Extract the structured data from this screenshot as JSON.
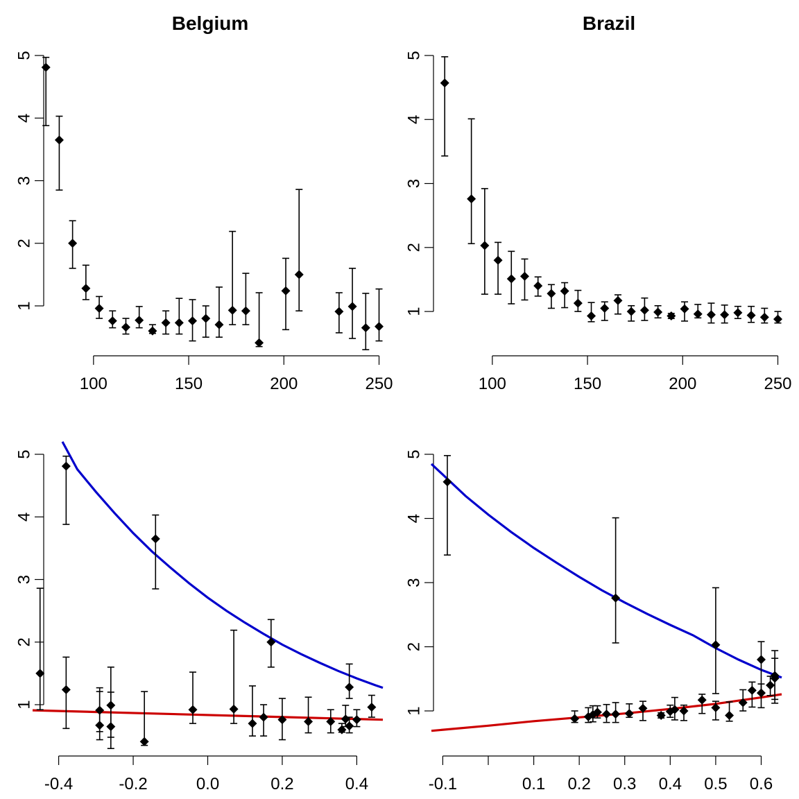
{
  "chart_data": [
    {
      "type": "scatter",
      "title": "Belgium",
      "xlabel": "",
      "ylabel": "",
      "xlim": [
        68,
        252
      ],
      "ylim": [
        0.28,
        5.0
      ],
      "xticks": [
        "100",
        "150",
        "200",
        "250"
      ],
      "yticks": [
        "1",
        "2",
        "3",
        "4",
        "5"
      ],
      "series": [
        {
          "points": [
            {
              "x": 75,
              "y": 4.81,
              "lo": 3.88,
              "hi": 4.97
            },
            {
              "x": 82,
              "y": 3.65,
              "lo": 2.85,
              "hi": 4.03
            },
            {
              "x": 89,
              "y": 2.0,
              "lo": 1.6,
              "hi": 2.36
            },
            {
              "x": 96,
              "y": 1.28,
              "lo": 1.1,
              "hi": 1.65
            },
            {
              "x": 103,
              "y": 0.96,
              "lo": 0.8,
              "hi": 1.15
            },
            {
              "x": 110,
              "y": 0.76,
              "lo": 0.65,
              "hi": 0.92
            },
            {
              "x": 117,
              "y": 0.66,
              "lo": 0.55,
              "hi": 0.8
            },
            {
              "x": 124,
              "y": 0.77,
              "lo": 0.65,
              "hi": 0.99
            },
            {
              "x": 131,
              "y": 0.6,
              "lo": 0.56,
              "hi": 0.7
            },
            {
              "x": 138,
              "y": 0.73,
              "lo": 0.55,
              "hi": 0.92
            },
            {
              "x": 145,
              "y": 0.73,
              "lo": 0.55,
              "hi": 1.12
            },
            {
              "x": 152,
              "y": 0.76,
              "lo": 0.44,
              "hi": 1.1
            },
            {
              "x": 159,
              "y": 0.8,
              "lo": 0.5,
              "hi": 1.0
            },
            {
              "x": 166,
              "y": 0.7,
              "lo": 0.5,
              "hi": 1.3
            },
            {
              "x": 173,
              "y": 0.93,
              "lo": 0.7,
              "hi": 2.19
            },
            {
              "x": 180,
              "y": 0.92,
              "lo": 0.7,
              "hi": 1.52
            },
            {
              "x": 187,
              "y": 0.41,
              "lo": 0.35,
              "hi": 1.21
            },
            {
              "x": 201,
              "y": 1.24,
              "lo": 0.62,
              "hi": 1.76
            },
            {
              "x": 208,
              "y": 1.5,
              "lo": 0.92,
              "hi": 2.86
            },
            {
              "x": 229,
              "y": 0.91,
              "lo": 0.57,
              "hi": 1.21
            },
            {
              "x": 236,
              "y": 0.99,
              "lo": 0.48,
              "hi": 1.6
            },
            {
              "x": 243,
              "y": 0.65,
              "lo": 0.3,
              "hi": 1.2
            },
            {
              "x": 250,
              "y": 0.67,
              "lo": 0.44,
              "hi": 1.27
            }
          ]
        }
      ]
    },
    {
      "type": "scatter",
      "title": "Brazil",
      "xlabel": "",
      "ylabel": "",
      "xlim": [
        68,
        252
      ],
      "ylim": [
        0.6,
        5.0
      ],
      "xticks": [
        "100",
        "150",
        "200",
        "250"
      ],
      "yticks": [
        "1",
        "2",
        "3",
        "4",
        "5"
      ],
      "series": [
        {
          "points": [
            {
              "x": 75,
              "y": 4.57,
              "lo": 3.43,
              "hi": 4.98
            },
            {
              "x": 89,
              "y": 2.76,
              "lo": 2.06,
              "hi": 4.01
            },
            {
              "x": 96,
              "y": 2.03,
              "lo": 1.27,
              "hi": 2.92
            },
            {
              "x": 103,
              "y": 1.8,
              "lo": 1.27,
              "hi": 2.08
            },
            {
              "x": 110,
              "y": 1.51,
              "lo": 1.12,
              "hi": 1.94
            },
            {
              "x": 117,
              "y": 1.55,
              "lo": 1.18,
              "hi": 1.82
            },
            {
              "x": 124,
              "y": 1.4,
              "lo": 1.24,
              "hi": 1.54
            },
            {
              "x": 131,
              "y": 1.28,
              "lo": 1.05,
              "hi": 1.42
            },
            {
              "x": 138,
              "y": 1.32,
              "lo": 1.06,
              "hi": 1.45
            },
            {
              "x": 145,
              "y": 1.13,
              "lo": 1.0,
              "hi": 1.33
            },
            {
              "x": 152,
              "y": 0.93,
              "lo": 0.84,
              "hi": 1.14
            },
            {
              "x": 159,
              "y": 1.05,
              "lo": 0.86,
              "hi": 1.15
            },
            {
              "x": 166,
              "y": 1.17,
              "lo": 0.96,
              "hi": 1.26
            },
            {
              "x": 173,
              "y": 1.0,
              "lo": 0.85,
              "hi": 1.09
            },
            {
              "x": 180,
              "y": 1.02,
              "lo": 0.86,
              "hi": 1.21
            },
            {
              "x": 187,
              "y": 0.99,
              "lo": 0.9,
              "hi": 1.09
            },
            {
              "x": 194,
              "y": 0.93,
              "lo": 0.89,
              "hi": 0.97
            },
            {
              "x": 201,
              "y": 1.04,
              "lo": 0.85,
              "hi": 1.15
            },
            {
              "x": 208,
              "y": 0.96,
              "lo": 0.9,
              "hi": 1.11
            },
            {
              "x": 215,
              "y": 0.95,
              "lo": 0.82,
              "hi": 1.13
            },
            {
              "x": 222,
              "y": 0.95,
              "lo": 0.82,
              "hi": 1.1
            },
            {
              "x": 229,
              "y": 0.98,
              "lo": 0.89,
              "hi": 1.08
            },
            {
              "x": 236,
              "y": 0.94,
              "lo": 0.83,
              "hi": 1.08
            },
            {
              "x": 243,
              "y": 0.91,
              "lo": 0.82,
              "hi": 1.05
            },
            {
              "x": 250,
              "y": 0.88,
              "lo": 0.82,
              "hi": 1.0
            }
          ]
        }
      ]
    },
    {
      "type": "scatter",
      "title": "",
      "xlabel": "",
      "ylabel": "",
      "xlim": [
        -0.47,
        0.47
      ],
      "ylim": [
        0.28,
        5.0
      ],
      "xticks": [
        "-0.4",
        "-0.2",
        "0.0",
        "0.2",
        "0.4"
      ],
      "yticks": [
        "1",
        "2",
        "3",
        "4",
        "5"
      ],
      "series": [
        {
          "points": [
            {
              "x": -0.45,
              "y": 1.5,
              "lo": 0.92,
              "hi": 2.86
            },
            {
              "x": -0.38,
              "y": 4.81,
              "lo": 3.88,
              "hi": 4.97
            },
            {
              "x": -0.38,
              "y": 1.24,
              "lo": 0.62,
              "hi": 1.76
            },
            {
              "x": -0.29,
              "y": 0.91,
              "lo": 0.57,
              "hi": 1.21
            },
            {
              "x": -0.29,
              "y": 0.67,
              "lo": 0.44,
              "hi": 1.27
            },
            {
              "x": -0.26,
              "y": 0.99,
              "lo": 0.48,
              "hi": 1.6
            },
            {
              "x": -0.26,
              "y": 0.65,
              "lo": 0.3,
              "hi": 1.2
            },
            {
              "x": -0.17,
              "y": 0.41,
              "lo": 0.35,
              "hi": 1.21
            },
            {
              "x": -0.14,
              "y": 3.65,
              "lo": 2.85,
              "hi": 4.03
            },
            {
              "x": -0.04,
              "y": 0.92,
              "lo": 0.7,
              "hi": 1.52
            },
            {
              "x": 0.07,
              "y": 0.93,
              "lo": 0.7,
              "hi": 2.19
            },
            {
              "x": 0.12,
              "y": 0.7,
              "lo": 0.5,
              "hi": 1.3
            },
            {
              "x": 0.15,
              "y": 0.8,
              "lo": 0.5,
              "hi": 1.0
            },
            {
              "x": 0.17,
              "y": 2.0,
              "lo": 1.6,
              "hi": 2.36
            },
            {
              "x": 0.2,
              "y": 0.76,
              "lo": 0.44,
              "hi": 1.1
            },
            {
              "x": 0.27,
              "y": 0.73,
              "lo": 0.55,
              "hi": 1.12
            },
            {
              "x": 0.33,
              "y": 0.73,
              "lo": 0.55,
              "hi": 0.92
            },
            {
              "x": 0.36,
              "y": 0.6,
              "lo": 0.56,
              "hi": 0.7
            },
            {
              "x": 0.37,
              "y": 0.77,
              "lo": 0.65,
              "hi": 0.99
            },
            {
              "x": 0.38,
              "y": 1.28,
              "lo": 1.1,
              "hi": 1.65
            },
            {
              "x": 0.38,
              "y": 0.66,
              "lo": 0.55,
              "hi": 0.8
            },
            {
              "x": 0.4,
              "y": 0.76,
              "lo": 0.65,
              "hi": 0.92
            },
            {
              "x": 0.44,
              "y": 0.96,
              "lo": 0.8,
              "hi": 1.15
            }
          ]
        },
        {
          "color": "#0000cc",
          "line": [
            {
              "x": -0.39,
              "y": 5.2
            },
            {
              "x": -0.35,
              "y": 4.76
            },
            {
              "x": -0.3,
              "y": 4.4
            },
            {
              "x": -0.25,
              "y": 4.06
            },
            {
              "x": -0.2,
              "y": 3.74
            },
            {
              "x": -0.15,
              "y": 3.45
            },
            {
              "x": -0.1,
              "y": 3.19
            },
            {
              "x": -0.05,
              "y": 2.94
            },
            {
              "x": 0.0,
              "y": 2.71
            },
            {
              "x": 0.05,
              "y": 2.5
            },
            {
              "x": 0.1,
              "y": 2.31
            },
            {
              "x": 0.15,
              "y": 2.13
            },
            {
              "x": 0.2,
              "y": 1.96
            },
            {
              "x": 0.25,
              "y": 1.81
            },
            {
              "x": 0.3,
              "y": 1.67
            },
            {
              "x": 0.35,
              "y": 1.54
            },
            {
              "x": 0.4,
              "y": 1.42
            },
            {
              "x": 0.45,
              "y": 1.31
            },
            {
              "x": 0.47,
              "y": 1.27
            }
          ]
        },
        {
          "color": "#cc0000",
          "line": [
            {
              "x": -0.47,
              "y": 0.91
            },
            {
              "x": 0.47,
              "y": 0.76
            }
          ]
        }
      ]
    },
    {
      "type": "scatter",
      "title": "",
      "xlabel": "",
      "ylabel": "",
      "xlim": [
        -0.125,
        0.645
      ],
      "ylim": [
        0.6,
        5.0
      ],
      "xticks": [
        "-0.1",
        "",
        "0.1",
        "0.2",
        "0.3",
        "0.4",
        "0.5",
        "0.6"
      ],
      "xtickvals": [
        -0.1,
        0.0,
        0.1,
        0.2,
        0.3,
        0.4,
        0.5,
        0.6
      ],
      "yticks": [
        "1",
        "2",
        "3",
        "4",
        "5"
      ],
      "series": [
        {
          "points": [
            {
              "x": -0.09,
              "y": 4.57,
              "lo": 3.43,
              "hi": 4.98
            },
            {
              "x": 0.28,
              "y": 2.76,
              "lo": 2.06,
              "hi": 4.01
            },
            {
              "x": 0.5,
              "y": 2.03,
              "lo": 1.27,
              "hi": 2.92
            },
            {
              "x": 0.6,
              "y": 1.8,
              "lo": 1.27,
              "hi": 2.08
            },
            {
              "x": 0.63,
              "y": 1.51,
              "lo": 1.12,
              "hi": 1.94
            },
            {
              "x": 0.63,
              "y": 1.55,
              "lo": 1.18,
              "hi": 1.82
            },
            {
              "x": 0.62,
              "y": 1.4,
              "lo": 1.24,
              "hi": 1.54
            },
            {
              "x": 0.6,
              "y": 1.28,
              "lo": 1.05,
              "hi": 1.42
            },
            {
              "x": 0.58,
              "y": 1.32,
              "lo": 1.06,
              "hi": 1.45
            },
            {
              "x": 0.56,
              "y": 1.13,
              "lo": 1.0,
              "hi": 1.33
            },
            {
              "x": 0.53,
              "y": 0.93,
              "lo": 0.84,
              "hi": 1.14
            },
            {
              "x": 0.5,
              "y": 1.05,
              "lo": 0.86,
              "hi": 1.15
            },
            {
              "x": 0.47,
              "y": 1.17,
              "lo": 0.96,
              "hi": 1.26
            },
            {
              "x": 0.43,
              "y": 1.0,
              "lo": 0.85,
              "hi": 1.09
            },
            {
              "x": 0.41,
              "y": 1.02,
              "lo": 0.86,
              "hi": 1.21
            },
            {
              "x": 0.4,
              "y": 0.99,
              "lo": 0.9,
              "hi": 1.09
            },
            {
              "x": 0.38,
              "y": 0.93,
              "lo": 0.89,
              "hi": 0.97
            },
            {
              "x": 0.34,
              "y": 1.04,
              "lo": 0.85,
              "hi": 1.15
            },
            {
              "x": 0.31,
              "y": 0.96,
              "lo": 0.9,
              "hi": 1.11
            },
            {
              "x": 0.28,
              "y": 0.95,
              "lo": 0.82,
              "hi": 1.13
            },
            {
              "x": 0.26,
              "y": 0.95,
              "lo": 0.82,
              "hi": 1.1
            },
            {
              "x": 0.24,
              "y": 0.98,
              "lo": 0.89,
              "hi": 1.08
            },
            {
              "x": 0.23,
              "y": 0.94,
              "lo": 0.83,
              "hi": 1.08
            },
            {
              "x": 0.22,
              "y": 0.91,
              "lo": 0.82,
              "hi": 1.05
            },
            {
              "x": 0.19,
              "y": 0.88,
              "lo": 0.82,
              "hi": 1.0
            }
          ]
        },
        {
          "color": "#0000cc",
          "line": [
            {
              "x": -0.125,
              "y": 4.85
            },
            {
              "x": -0.05,
              "y": 4.35
            },
            {
              "x": 0.0,
              "y": 4.06
            },
            {
              "x": 0.05,
              "y": 3.79
            },
            {
              "x": 0.1,
              "y": 3.54
            },
            {
              "x": 0.15,
              "y": 3.31
            },
            {
              "x": 0.2,
              "y": 3.09
            },
            {
              "x": 0.25,
              "y": 2.88
            },
            {
              "x": 0.3,
              "y": 2.69
            },
            {
              "x": 0.35,
              "y": 2.51
            },
            {
              "x": 0.4,
              "y": 2.34
            },
            {
              "x": 0.45,
              "y": 2.18
            },
            {
              "x": 0.5,
              "y": 1.98
            },
            {
              "x": 0.55,
              "y": 1.8
            },
            {
              "x": 0.6,
              "y": 1.64
            },
            {
              "x": 0.645,
              "y": 1.52
            }
          ]
        },
        {
          "color": "#cc0000",
          "line": [
            {
              "x": -0.125,
              "y": 0.69
            },
            {
              "x": 0.0,
              "y": 0.77
            },
            {
              "x": 0.1,
              "y": 0.84
            },
            {
              "x": 0.2,
              "y": 0.9
            },
            {
              "x": 0.3,
              "y": 0.96
            },
            {
              "x": 0.4,
              "y": 1.03
            },
            {
              "x": 0.5,
              "y": 1.11
            },
            {
              "x": 0.6,
              "y": 1.21
            },
            {
              "x": 0.645,
              "y": 1.26
            }
          ]
        }
      ]
    }
  ]
}
